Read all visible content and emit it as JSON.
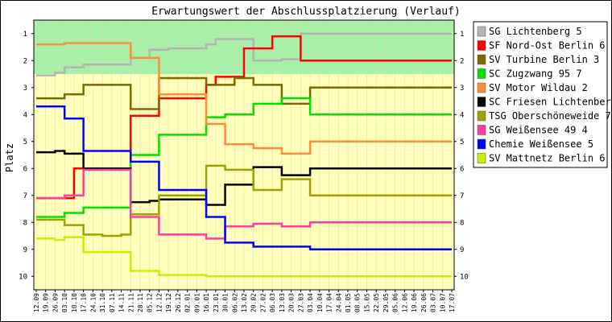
{
  "chart_data": {
    "type": "line",
    "title": "Erwartungswert der Abschlussplatzierung (Verlauf)",
    "ylabel": "Platz",
    "xlabel": "",
    "ylim": [
      1,
      10
    ],
    "y_inverted": true,
    "yticks": [
      "1",
      "2",
      "3",
      "4",
      "5",
      "6",
      "7",
      "8",
      "9",
      "10"
    ],
    "legend_position": "right",
    "bands": [
      {
        "from": 0.5,
        "to": 2.5,
        "color": "#a8f0a8"
      },
      {
        "from": 2.5,
        "to": 10.5,
        "color": "#ffffbb"
      }
    ],
    "x": [
      "12.09",
      "19.09",
      "26.09",
      "03.10",
      "10.10",
      "17.10",
      "24.10",
      "31.10",
      "07.11",
      "14.11",
      "21.11",
      "28.11",
      "05.12",
      "12.12",
      "19.12",
      "26.12",
      "02.01",
      "09.01",
      "16.01",
      "23.01",
      "30.01",
      "06.02",
      "13.02",
      "20.02",
      "27.02",
      "06.03",
      "13.03",
      "20.03",
      "27.03",
      "03.04",
      "10.04",
      "17.04",
      "24.04",
      "01.05",
      "08.05",
      "15.05",
      "22.05",
      "29.05",
      "05.06",
      "12.06",
      "19.06",
      "26.06",
      "03.07",
      "10.07",
      "17.07"
    ],
    "series": [
      {
        "name": "SG Lichtenberg 5",
        "color": "#b4b4b4",
        "values": [
          2.55,
          2.55,
          2.45,
          2.25,
          2.25,
          2.15,
          2.15,
          2.15,
          2.15,
          2.15,
          1.9,
          1.9,
          1.6,
          1.6,
          1.55,
          1.55,
          1.55,
          1.55,
          1.4,
          1.2,
          1.2,
          1.2,
          1.2,
          2.0,
          2.0,
          2.0,
          1.95,
          1.95,
          1.0,
          1.0,
          1.0,
          1.0,
          1.0,
          1.0,
          1.0,
          1.0,
          1.0,
          1.0,
          1.0,
          1.0,
          1.0,
          1.0,
          1.0,
          1.0,
          1.0
        ]
      },
      {
        "name": "SF Nord-Ost Berlin 6",
        "color": "#ff0000",
        "values": [
          7.1,
          7.1,
          7.1,
          7.1,
          6.0,
          6.0,
          6.0,
          6.0,
          6.0,
          6.0,
          4.05,
          4.05,
          4.05,
          3.4,
          3.4,
          3.4,
          3.4,
          3.4,
          2.9,
          2.6,
          2.6,
          2.6,
          1.55,
          1.55,
          1.55,
          1.1,
          1.1,
          1.1,
          2.0,
          2.0,
          2.0,
          2.0,
          2.0,
          2.0,
          2.0,
          2.0,
          2.0,
          2.0,
          2.0,
          2.0,
          2.0,
          2.0,
          2.0,
          2.0,
          2.0
        ]
      },
      {
        "name": "SV Turbine Berlin 3",
        "color": "#7a6a00",
        "values": [
          3.4,
          3.4,
          3.4,
          3.25,
          3.25,
          2.9,
          2.9,
          2.9,
          2.9,
          2.9,
          3.8,
          3.8,
          3.8,
          2.65,
          2.65,
          2.65,
          2.65,
          2.65,
          2.9,
          2.9,
          2.9,
          2.65,
          2.65,
          2.9,
          2.9,
          2.9,
          3.6,
          3.6,
          3.6,
          3.0,
          3.0,
          3.0,
          3.0,
          3.0,
          3.0,
          3.0,
          3.0,
          3.0,
          3.0,
          3.0,
          3.0,
          3.0,
          3.0,
          3.0,
          3.0
        ]
      },
      {
        "name": "SC Zugzwang 95 7",
        "color": "#00e000",
        "values": [
          7.8,
          7.8,
          7.8,
          7.65,
          7.65,
          7.45,
          7.45,
          7.45,
          7.45,
          7.45,
          5.5,
          5.5,
          5.5,
          4.75,
          4.75,
          4.75,
          4.75,
          4.75,
          4.1,
          4.1,
          4.0,
          4.0,
          4.0,
          3.6,
          3.6,
          3.6,
          3.4,
          3.4,
          3.4,
          4.0,
          4.0,
          4.0,
          4.0,
          4.0,
          4.0,
          4.0,
          4.0,
          4.0,
          4.0,
          4.0,
          4.0,
          4.0,
          4.0,
          4.0,
          4.0
        ]
      },
      {
        "name": "SV Motor Wildau 2",
        "color": "#ff8c3c",
        "values": [
          1.4,
          1.4,
          1.4,
          1.35,
          1.35,
          1.35,
          1.35,
          1.35,
          1.35,
          1.35,
          1.9,
          1.9,
          1.9,
          3.25,
          3.25,
          3.25,
          3.25,
          3.25,
          4.35,
          4.35,
          5.1,
          5.1,
          5.1,
          5.25,
          5.25,
          5.25,
          5.45,
          5.45,
          5.45,
          5.0,
          5.0,
          5.0,
          5.0,
          5.0,
          5.0,
          5.0,
          5.0,
          5.0,
          5.0,
          5.0,
          5.0,
          5.0,
          5.0,
          5.0,
          5.0
        ]
      },
      {
        "name": "SC Friesen Lichtenberg 5",
        "color": "#000000",
        "values": [
          5.4,
          5.4,
          5.35,
          5.45,
          5.45,
          6.0,
          6.0,
          6.0,
          6.0,
          6.0,
          7.25,
          7.25,
          7.2,
          7.15,
          7.15,
          7.15,
          7.15,
          7.15,
          7.35,
          7.35,
          6.6,
          6.6,
          6.6,
          5.95,
          5.95,
          5.95,
          6.25,
          6.25,
          6.25,
          6.0,
          6.0,
          6.0,
          6.0,
          6.0,
          6.0,
          6.0,
          6.0,
          6.0,
          6.0,
          6.0,
          6.0,
          6.0,
          6.0,
          6.0,
          6.0
        ]
      },
      {
        "name": "TSG Oberschöneweide 7",
        "color": "#a0a000",
        "values": [
          7.9,
          7.9,
          7.9,
          8.1,
          8.1,
          8.45,
          8.45,
          8.5,
          8.5,
          8.45,
          7.7,
          7.7,
          7.7,
          7.0,
          7.0,
          7.0,
          7.0,
          7.0,
          5.9,
          5.9,
          6.05,
          6.05,
          6.05,
          6.8,
          6.8,
          6.8,
          6.4,
          6.4,
          6.4,
          7.0,
          7.0,
          7.0,
          7.0,
          7.0,
          7.0,
          7.0,
          7.0,
          7.0,
          7.0,
          7.0,
          7.0,
          7.0,
          7.0,
          7.0,
          7.0
        ]
      },
      {
        "name": "SG Weißensee 49 4",
        "color": "#ff3ca0",
        "values": [
          7.1,
          7.1,
          7.1,
          7.0,
          7.0,
          6.05,
          6.05,
          6.05,
          6.05,
          6.05,
          7.8,
          7.8,
          7.8,
          8.45,
          8.45,
          8.45,
          8.45,
          8.45,
          8.6,
          8.6,
          8.15,
          8.15,
          8.15,
          8.05,
          8.05,
          8.05,
          8.15,
          8.15,
          8.15,
          8.0,
          8.0,
          8.0,
          8.0,
          8.0,
          8.0,
          8.0,
          8.0,
          8.0,
          8.0,
          8.0,
          8.0,
          8.0,
          8.0,
          8.0,
          8.0
        ]
      },
      {
        "name": "Chemie Weißensee 5",
        "color": "#0000ff",
        "values": [
          3.7,
          3.7,
          3.7,
          4.15,
          4.15,
          5.35,
          5.35,
          5.35,
          5.35,
          5.35,
          5.75,
          5.75,
          5.75,
          6.8,
          6.8,
          6.8,
          6.8,
          6.8,
          7.8,
          7.8,
          8.75,
          8.75,
          8.75,
          8.9,
          8.9,
          8.9,
          8.9,
          8.9,
          8.9,
          9.0,
          9.0,
          9.0,
          9.0,
          9.0,
          9.0,
          9.0,
          9.0,
          9.0,
          9.0,
          9.0,
          9.0,
          9.0,
          9.0,
          9.0,
          9.0
        ]
      },
      {
        "name": "SV Mattnetz Berlin 6",
        "color": "#c8f000",
        "values": [
          8.6,
          8.6,
          8.65,
          8.55,
          8.55,
          9.1,
          9.1,
          9.1,
          9.1,
          9.1,
          9.8,
          9.8,
          9.8,
          9.95,
          9.95,
          9.95,
          9.95,
          9.95,
          10.0,
          10.0,
          10.0,
          10.0,
          10.0,
          10.0,
          10.0,
          10.0,
          10.0,
          10.0,
          10.0,
          10.0,
          10.0,
          10.0,
          10.0,
          10.0,
          10.0,
          10.0,
          10.0,
          10.0,
          10.0,
          10.0,
          10.0,
          10.0,
          10.0,
          10.0,
          10.0
        ]
      }
    ]
  }
}
